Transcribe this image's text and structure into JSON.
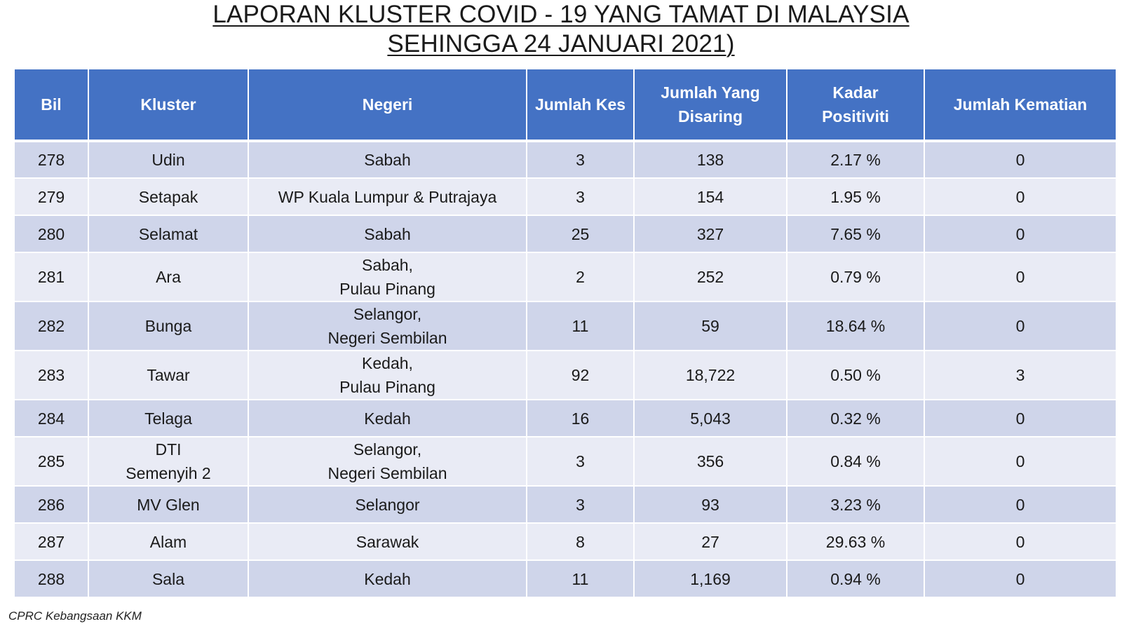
{
  "title": {
    "line1": "LAPORAN KLUSTER COVID - 19 YANG TAMAT DI MALAYSIA",
    "line2": "SEHINGGA 24 JANUARI 2021)"
  },
  "table": {
    "headers": [
      "Bil",
      "Kluster",
      "Negeri",
      "Jumlah Kes",
      "Jumlah Yang\nDisaring",
      "Kadar\nPositiviti",
      "Jumlah Kematian"
    ],
    "rows": [
      {
        "bil": "278",
        "kluster": "Udin",
        "negeri": "Sabah",
        "kes": "3",
        "disaring": "138",
        "positiviti": "2.17 %",
        "kematian": "0"
      },
      {
        "bil": "279",
        "kluster": "Setapak",
        "negeri": "WP Kuala Lumpur & Putrajaya",
        "kes": "3",
        "disaring": "154",
        "positiviti": "1.95 %",
        "kematian": "0"
      },
      {
        "bil": "280",
        "kluster": "Selamat",
        "negeri": "Sabah",
        "kes": "25",
        "disaring": "327",
        "positiviti": "7.65 %",
        "kematian": "0"
      },
      {
        "bil": "281",
        "kluster": "Ara",
        "negeri": "Sabah,\nPulau Pinang",
        "kes": "2",
        "disaring": "252",
        "positiviti": "0.79 %",
        "kematian": "0"
      },
      {
        "bil": "282",
        "kluster": "Bunga",
        "negeri": "Selangor,\nNegeri Sembilan",
        "kes": "11",
        "disaring": "59",
        "positiviti": "18.64 %",
        "kematian": "0"
      },
      {
        "bil": "283",
        "kluster": "Tawar",
        "negeri": "Kedah,\nPulau Pinang",
        "kes": "92",
        "disaring": "18,722",
        "positiviti": "0.50 %",
        "kematian": "3"
      },
      {
        "bil": "284",
        "kluster": "Telaga",
        "negeri": "Kedah",
        "kes": "16",
        "disaring": "5,043",
        "positiviti": "0.32 %",
        "kematian": "0"
      },
      {
        "bil": "285",
        "kluster": "DTI\nSemenyih 2",
        "negeri": "Selangor,\nNegeri Sembilan",
        "kes": "3",
        "disaring": "356",
        "positiviti": "0.84 %",
        "kematian": "0"
      },
      {
        "bil": "286",
        "kluster": "MV Glen",
        "negeri": "Selangor",
        "kes": "3",
        "disaring": "93",
        "positiviti": "3.23 %",
        "kematian": "0"
      },
      {
        "bil": "287",
        "kluster": "Alam",
        "negeri": "Sarawak",
        "kes": "8",
        "disaring": "27",
        "positiviti": "29.63 %",
        "kematian": "0"
      },
      {
        "bil": "288",
        "kluster": "Sala",
        "negeri": "Kedah",
        "kes": "11",
        "disaring": "1,169",
        "positiviti": "0.94 %",
        "kematian": "0"
      }
    ]
  },
  "footer": {
    "source": "CPRC Kebangsaan KKM"
  },
  "colors": {
    "header_bg": "#4472c4",
    "row_odd": "#cfd5ea",
    "row_even": "#e9ebf5"
  }
}
